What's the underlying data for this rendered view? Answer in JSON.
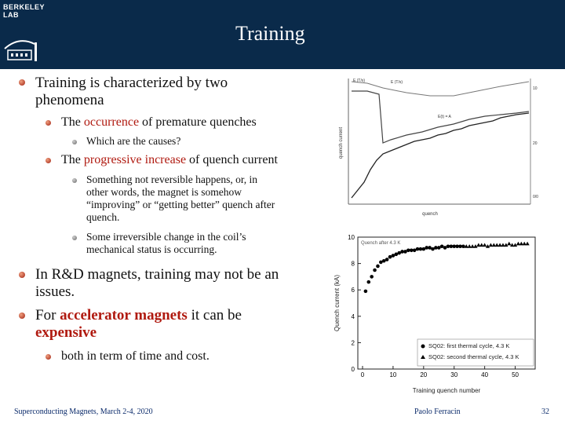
{
  "header": {
    "logo_line1": "BERKELEY",
    "logo_line2": "LAB",
    "title": "Training"
  },
  "bullets": {
    "b1_line1": "Training is characterized by two",
    "b1_line2": "phenomena",
    "b1_1_pre": "The ",
    "b1_1_em": "occurrence",
    "b1_1_post": " of premature quenches",
    "b1_1_1": "Which are the causes?",
    "b1_2_pre": "The ",
    "b1_2_em": "progressive increase",
    "b1_2_post": " of quench current",
    "b1_2_1_l1": "Something not reversible happens, or, in",
    "b1_2_1_l2": "other words, the magnet is somehow",
    "b1_2_1_l3": "“improving” or “getting better” quench after",
    "b1_2_1_l4": "quench.",
    "b1_2_2_l1": "Some irreversible change in the coil’s",
    "b1_2_2_l2": "mechanical status is occurring.",
    "b2_l1": "In R&D magnets, training may not be an",
    "b2_l2": "issues.",
    "b3_l1_pre": "For ",
    "b3_l1_em": "accelerator magnets",
    "b3_l1_post": " it can be",
    "b3_l2_em": "expensive",
    "b3_1": "both in term of time and cost."
  },
  "footer": {
    "left": "Superconducting Magnets, March 2-4, 2020",
    "mid": "Paolo Ferracin",
    "right": "32"
  },
  "figure_top": {
    "labels": [
      "E (T/s)",
      "E (T/s)",
      "E(t) = A",
      "10",
      "20",
      "0/0"
    ],
    "xlabel": "quench",
    "ylabel": "quench current"
  },
  "chart_data": {
    "type": "scatter",
    "title": "",
    "legend_title": "Quench after 4.3 K",
    "xlabel": "Training quench number",
    "ylabel": "Quench current (kA)",
    "xlim": [
      0,
      55
    ],
    "ylim": [
      0,
      10
    ],
    "xticks": [
      "0",
      "10",
      "20",
      "30",
      "40",
      "50"
    ],
    "yticks": [
      "0",
      "2",
      "4",
      "6",
      "8",
      "10"
    ],
    "series": [
      {
        "name": "SQ02: first thermal cycle, 4.3 K",
        "marker": "circle",
        "x": [
          1,
          2,
          3,
          4,
          5,
          6,
          7,
          8,
          9,
          10,
          11,
          12,
          13,
          14,
          15,
          16,
          17,
          18,
          19,
          20,
          21,
          22,
          23,
          24,
          25,
          26,
          27,
          28,
          29,
          30,
          31,
          32,
          33
        ],
        "y": [
          5.9,
          6.6,
          7.0,
          7.5,
          7.8,
          8.1,
          8.2,
          8.3,
          8.5,
          8.6,
          8.7,
          8.8,
          8.9,
          8.9,
          9.0,
          9.0,
          9.0,
          9.1,
          9.1,
          9.1,
          9.2,
          9.2,
          9.1,
          9.2,
          9.2,
          9.3,
          9.2,
          9.3,
          9.3,
          9.3,
          9.3,
          9.3,
          9.3
        ]
      },
      {
        "name": "SQ02: second thermal cycle, 4.3 K",
        "marker": "triangle",
        "x": [
          34,
          35,
          36,
          37,
          38,
          39,
          40,
          41,
          42,
          43,
          44,
          45,
          46,
          47,
          48,
          49,
          50,
          51,
          52,
          53,
          54
        ],
        "y": [
          9.3,
          9.3,
          9.3,
          9.3,
          9.4,
          9.4,
          9.4,
          9.3,
          9.4,
          9.4,
          9.4,
          9.4,
          9.4,
          9.4,
          9.5,
          9.4,
          9.4,
          9.5,
          9.5,
          9.5,
          9.5
        ]
      }
    ]
  }
}
